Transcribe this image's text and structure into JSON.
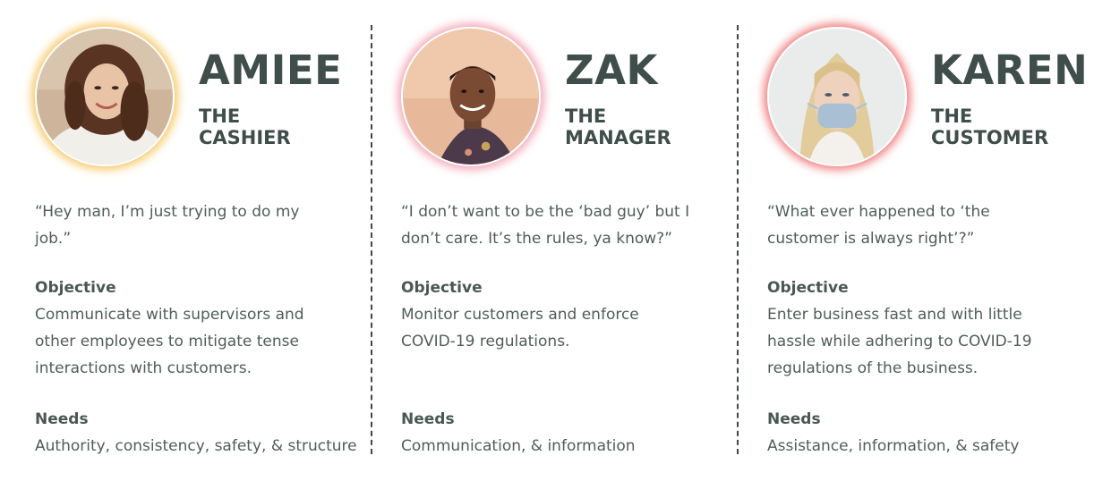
{
  "personas": [
    {
      "name": "AMIEE",
      "role_line1": "THE",
      "role_line2": "CASHIER",
      "quote": "“Hey man, I’m just trying to do my job.”",
      "objective_label": "Objective",
      "objective": "Communicate with supervisors and other employees to mitigate tense interactions with customers.",
      "needs_label": "Needs",
      "needs": "Authority, consistency, safety, & structure",
      "glow_color": "#f7c96a"
    },
    {
      "name": "ZAK",
      "role_line1": "THE",
      "role_line2": "MANAGER",
      "quote": "“I don’t want to be the ‘bad guy’ but I don’t care. It’s the rules, ya know?”",
      "objective_label": "Objective",
      "objective": "Monitor customers and enforce COVID-19 regulations.",
      "needs_label": "Needs",
      "needs": "Communication, & information",
      "glow_color": "#f4a9b8"
    },
    {
      "name": "KAREN",
      "role_line1": "THE",
      "role_line2": "CUSTOMER",
      "quote": "“What ever happened to ‘the customer is always right’?”",
      "objective_label": "Objective",
      "objective": "Enter business fast and with little hassle while adhering to COVID-19 regulations of the business.",
      "needs_label": "Needs",
      "needs": "Assistance, information, & safety",
      "glow_color": "#f07f7f"
    }
  ]
}
